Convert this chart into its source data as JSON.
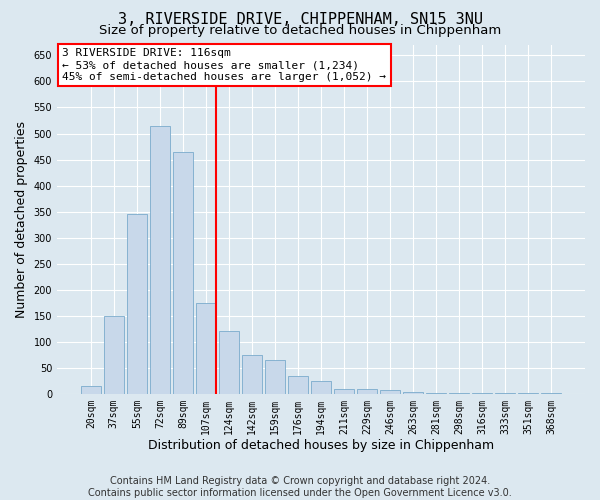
{
  "title": "3, RIVERSIDE DRIVE, CHIPPENHAM, SN15 3NU",
  "subtitle": "Size of property relative to detached houses in Chippenham",
  "xlabel": "Distribution of detached houses by size in Chippenham",
  "ylabel": "Number of detached properties",
  "categories": [
    "20sqm",
    "37sqm",
    "55sqm",
    "72sqm",
    "89sqm",
    "107sqm",
    "124sqm",
    "142sqm",
    "159sqm",
    "176sqm",
    "194sqm",
    "211sqm",
    "229sqm",
    "246sqm",
    "263sqm",
    "281sqm",
    "298sqm",
    "316sqm",
    "333sqm",
    "351sqm",
    "368sqm"
  ],
  "values": [
    15,
    150,
    345,
    515,
    465,
    175,
    120,
    75,
    65,
    35,
    25,
    10,
    10,
    8,
    4,
    2,
    2,
    1,
    1,
    1,
    1
  ],
  "bar_color": "#c8d8ea",
  "bar_edge_color": "#7aabcc",
  "vline_color": "red",
  "vline_x_idx": 5.42,
  "annotation_text": "3 RIVERSIDE DRIVE: 116sqm\n← 53% of detached houses are smaller (1,234)\n45% of semi-detached houses are larger (1,052) →",
  "ylim": [
    0,
    670
  ],
  "yticks": [
    0,
    50,
    100,
    150,
    200,
    250,
    300,
    350,
    400,
    450,
    500,
    550,
    600,
    650
  ],
  "footer": "Contains HM Land Registry data © Crown copyright and database right 2024.\nContains public sector information licensed under the Open Government Licence v3.0.",
  "bg_color": "#dce8f0",
  "grid_color": "white",
  "title_fontsize": 11,
  "subtitle_fontsize": 9.5,
  "axis_label_fontsize": 9,
  "tick_fontsize": 7,
  "footer_fontsize": 7,
  "annotation_fontsize": 8
}
